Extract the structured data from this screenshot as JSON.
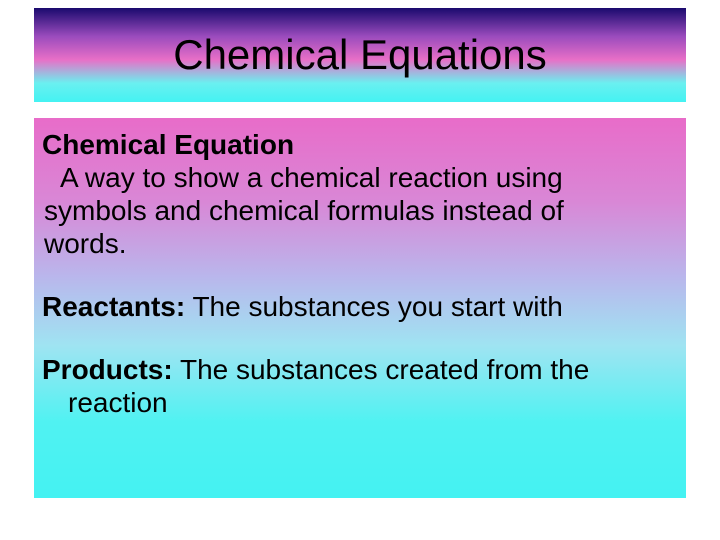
{
  "styling": {
    "title_gradient_stops": [
      "#1a0a6e",
      "#9a4bbd",
      "#e86fc7",
      "#6af0f0",
      "#44f2f2"
    ],
    "body_gradient_stops": [
      "#e86cc9",
      "#d987d6",
      "#b9b7ec",
      "#9fe4f2",
      "#50f2f2",
      "#44f2f2"
    ],
    "body_gradient_positions": [
      0,
      22,
      42,
      60,
      80,
      100
    ],
    "text_color": "#000000",
    "font_family": "Arial",
    "title_fontsize": 42,
    "body_fontsize": 28,
    "slide_width": 720,
    "slide_height": 540
  },
  "title": "Chemical Equations",
  "sections": [
    {
      "term": "Chemical Equation",
      "definition_firstline": "A way to show a chemical reaction using",
      "definition_cont1": "symbols and chemical formulas instead of",
      "definition_cont2": "words."
    },
    {
      "term": "Reactants:",
      "definition_inline": "  The substances you start with"
    },
    {
      "term": "Products:",
      "definition_inline": "  The substances created from the",
      "definition_cont": "reaction"
    }
  ]
}
